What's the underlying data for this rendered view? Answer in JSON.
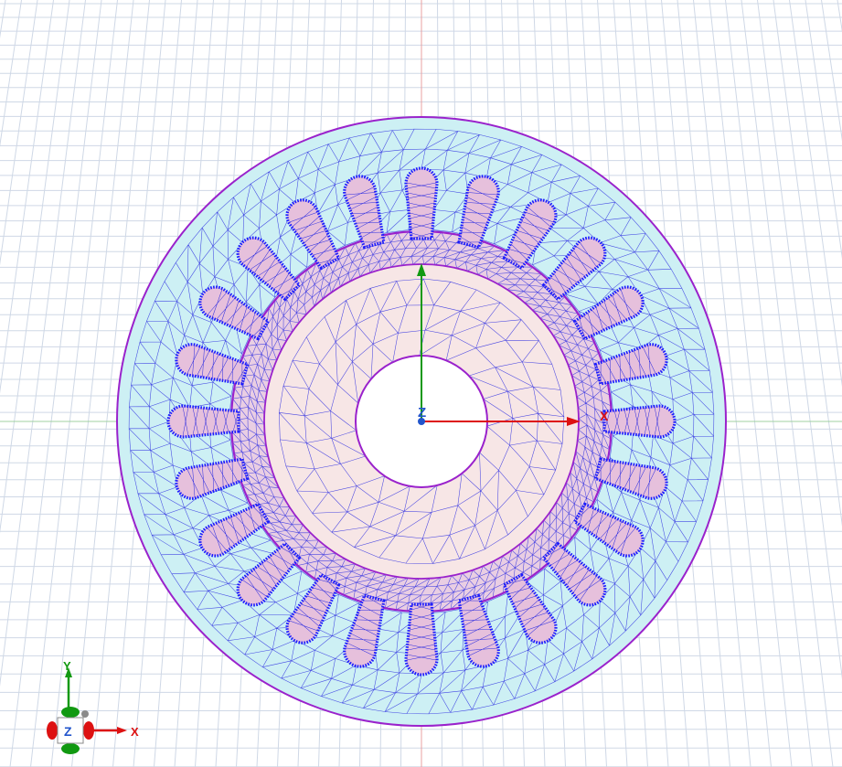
{
  "viewport": {
    "colors": {
      "background": "#ffffff",
      "grid": "#cfd8e6",
      "origin_vertical": "#e8a0a0",
      "origin_horizontal": "#a0d0a0",
      "stator_fill": "#cdf0f4",
      "rotor_fill": "#f7e6e6",
      "slot_fill": "#e6c0dc",
      "mesh": "#2a2ae0",
      "boundary": "#9a22cc",
      "slot_outline": "#1a1aff",
      "x_axis": "#dd1111",
      "y_axis": "#119911",
      "z_axis": "#2255cc"
    },
    "mesh": {
      "slot_count": 24,
      "stator_outer_radius": 333,
      "rotor_outer_radius": 208,
      "air_gap_ring_radius": 172,
      "shaft_radius": 72
    }
  },
  "origin_triad": {
    "x_label": "X",
    "z_label": "Z"
  },
  "view_cube": {
    "x_label": "X",
    "y_label": "Y",
    "z_label": "Z",
    "icon": "axis-orientation-cube-icon"
  }
}
